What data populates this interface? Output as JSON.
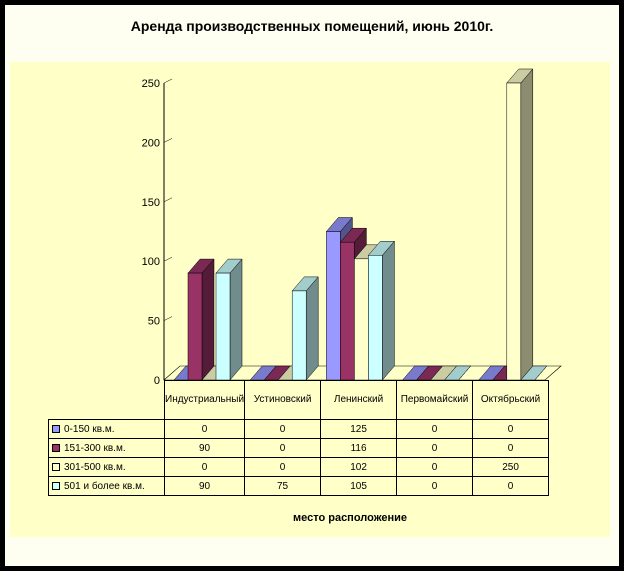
{
  "title": "Аренда производственных помещений, июнь 2010г.",
  "chart_data": {
    "type": "bar",
    "style": "3d-clustered",
    "title": "Аренда производственных помещений, июнь 2010г.",
    "xlabel": "место расположение",
    "ylabel": "",
    "ylim": [
      0,
      250
    ],
    "yticks": [
      "0",
      "50",
      "100",
      "150",
      "200",
      "250"
    ],
    "categories": [
      "Индустриальный",
      "Устиновский",
      "Ленинский",
      "Первомайский",
      "Октябрьский"
    ],
    "series": [
      {
        "name": "0-150 кв.м.",
        "values": [
          0,
          0,
          125,
          0,
          0
        ],
        "color": "#9999ff"
      },
      {
        "name": "151-300 кв.м.",
        "values": [
          90,
          0,
          116,
          0,
          0
        ],
        "color": "#993366"
      },
      {
        "name": "301-500 кв.м.",
        "values": [
          0,
          0,
          102,
          0,
          250
        ],
        "color": "#ffffcc"
      },
      {
        "name": "501 и более кв.м.",
        "values": [
          90,
          75,
          105,
          0,
          0
        ],
        "color": "#ccffff"
      }
    ],
    "data_table": true,
    "legend": "in-data-table"
  }
}
